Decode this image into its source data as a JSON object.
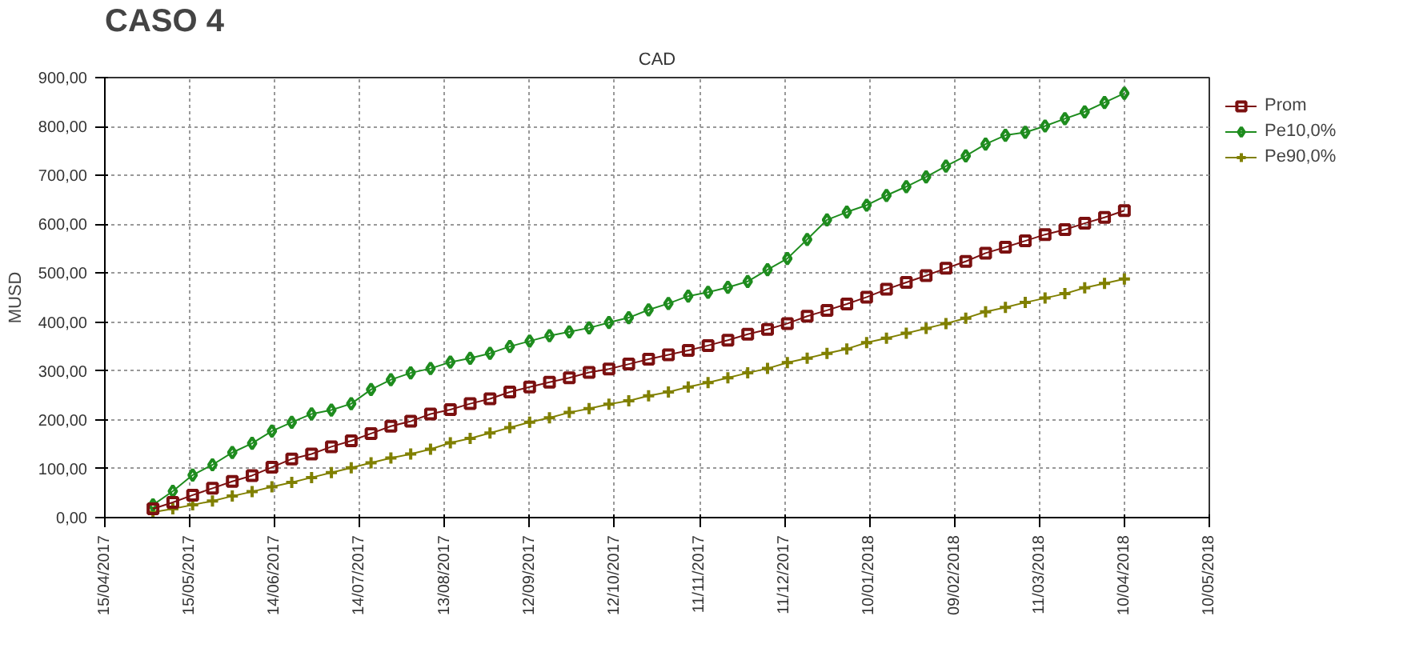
{
  "chart_data": {
    "type": "line",
    "title": "CASO 4",
    "subtitle": "CAD",
    "ylabel": "MUSD",
    "x": [
      "2017-05-02",
      "2017-05-09",
      "2017-05-16",
      "2017-05-23",
      "2017-05-30",
      "2017-06-06",
      "2017-06-13",
      "2017-06-20",
      "2017-06-27",
      "2017-07-04",
      "2017-07-11",
      "2017-07-18",
      "2017-07-25",
      "2017-08-01",
      "2017-08-08",
      "2017-08-15",
      "2017-08-22",
      "2017-08-29",
      "2017-09-05",
      "2017-09-12",
      "2017-09-19",
      "2017-09-26",
      "2017-10-03",
      "2017-10-10",
      "2017-10-17",
      "2017-10-24",
      "2017-10-31",
      "2017-11-07",
      "2017-11-14",
      "2017-11-21",
      "2017-11-28",
      "2017-12-05",
      "2017-12-12",
      "2017-12-19",
      "2017-12-26",
      "2018-01-02",
      "2018-01-09",
      "2018-01-16",
      "2018-01-23",
      "2018-01-30",
      "2018-02-06",
      "2018-02-13",
      "2018-02-20",
      "2018-02-27",
      "2018-03-06",
      "2018-03-13",
      "2018-03-20",
      "2018-03-27",
      "2018-04-03",
      "2018-04-10"
    ],
    "series": [
      {
        "name": "Prom",
        "color": "#7b1010",
        "marker": "square",
        "values": [
          18,
          31,
          46,
          60,
          74,
          86,
          103,
          120,
          130,
          145,
          157,
          172,
          187,
          197,
          212,
          221,
          233,
          243,
          257,
          267,
          277,
          286,
          297,
          304,
          314,
          324,
          333,
          342,
          352,
          363,
          375,
          385,
          397,
          412,
          424,
          437,
          451,
          467,
          481,
          495,
          510,
          524,
          541,
          553,
          566,
          579,
          589,
          602,
          614,
          628
        ]
      },
      {
        "name": "Pe10,0%",
        "color": "#1e8c1e",
        "marker": "diamond",
        "values": [
          26,
          54,
          87,
          108,
          133,
          152,
          177,
          195,
          212,
          220,
          233,
          262,
          282,
          296,
          305,
          318,
          326,
          336,
          350,
          361,
          372,
          380,
          388,
          399,
          409,
          425,
          438,
          453,
          461,
          471,
          483,
          507,
          530,
          569,
          609,
          625,
          639,
          659,
          677,
          697,
          719,
          740,
          764,
          782,
          788,
          801,
          816,
          830,
          849,
          868
        ]
      },
      {
        "name": "Pe90,0%",
        "color": "#808000",
        "marker": "cross",
        "values": [
          11,
          18,
          26,
          34,
          44,
          53,
          63,
          72,
          82,
          92,
          102,
          112,
          122,
          130,
          140,
          153,
          162,
          173,
          184,
          195,
          204,
          215,
          223,
          232,
          239,
          249,
          257,
          267,
          276,
          286,
          296,
          305,
          317,
          326,
          336,
          345,
          358,
          367,
          377,
          387,
          397,
          408,
          421,
          430,
          440,
          449,
          458,
          470,
          479,
          488
        ]
      }
    ],
    "xlim": [
      "2017-04-15",
      "2018-05-10"
    ],
    "xticks": [
      {
        "value": "2017-04-15",
        "label": "15/04/2017"
      },
      {
        "value": "2017-05-15",
        "label": "15/05/2017"
      },
      {
        "value": "2017-06-14",
        "label": "14/06/2017"
      },
      {
        "value": "2017-07-14",
        "label": "14/07/2017"
      },
      {
        "value": "2017-08-13",
        "label": "13/08/2017"
      },
      {
        "value": "2017-09-12",
        "label": "12/09/2017"
      },
      {
        "value": "2017-10-12",
        "label": "12/10/2017"
      },
      {
        "value": "2017-11-11",
        "label": "11/11/2017"
      },
      {
        "value": "2017-12-11",
        "label": "11/12/2017"
      },
      {
        "value": "2018-01-10",
        "label": "10/01/2018"
      },
      {
        "value": "2018-02-09",
        "label": "09/02/2018"
      },
      {
        "value": "2018-03-11",
        "label": "11/03/2018"
      },
      {
        "value": "2018-04-10",
        "label": "10/04/2018"
      },
      {
        "value": "2018-05-10",
        "label": "10/05/2018"
      }
    ],
    "ylim": [
      0,
      900
    ],
    "yticks": [
      {
        "value": 0,
        "label": "0,00"
      },
      {
        "value": 100,
        "label": "100,00"
      },
      {
        "value": 200,
        "label": "200,00"
      },
      {
        "value": 300,
        "label": "300,00"
      },
      {
        "value": 400,
        "label": "400,00"
      },
      {
        "value": 500,
        "label": "500,00"
      },
      {
        "value": 600,
        "label": "600,00"
      },
      {
        "value": 700,
        "label": "700,00"
      },
      {
        "value": 800,
        "label": "800,00"
      },
      {
        "value": 900,
        "label": "900,00"
      }
    ],
    "grid": true,
    "legend": "right",
    "line_style": "solid"
  }
}
